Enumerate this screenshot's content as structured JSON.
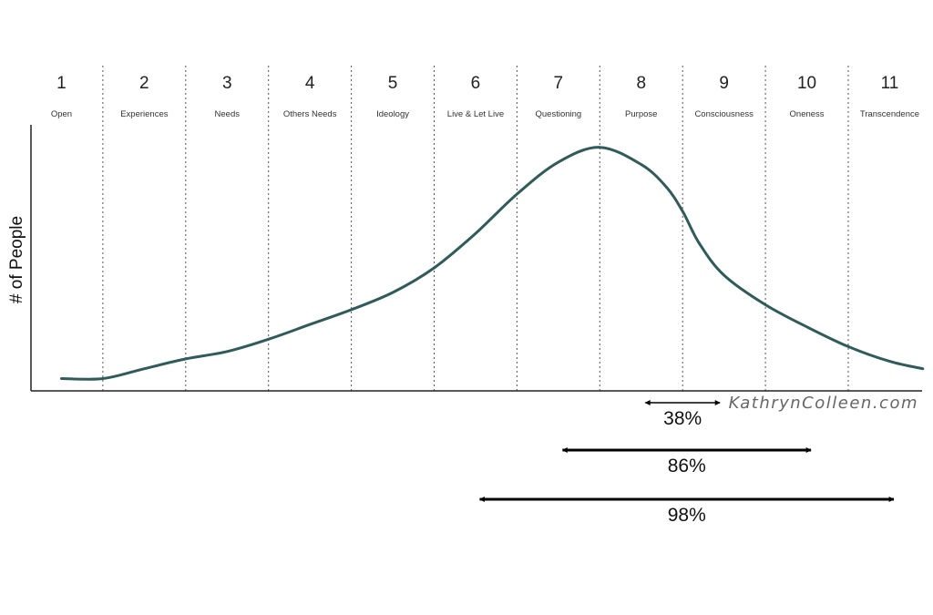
{
  "chart_data": {
    "type": "line",
    "ylabel": "# of People",
    "categories": [
      {
        "num": "1",
        "label": "Open"
      },
      {
        "num": "2",
        "label": "Experiences"
      },
      {
        "num": "3",
        "label": "Needs"
      },
      {
        "num": "4",
        "label": "Others Needs"
      },
      {
        "num": "5",
        "label": "Ideology"
      },
      {
        "num": "6",
        "label": "Live & Let Live"
      },
      {
        "num": "7",
        "label": "Questioning"
      },
      {
        "num": "8",
        "label": "Purpose"
      },
      {
        "num": "9",
        "label": "Consciousness"
      },
      {
        "num": "10",
        "label": "Oneness"
      },
      {
        "num": "11",
        "label": "Transcendence"
      }
    ],
    "x": [
      0.5,
      1.0,
      1.5,
      2.0,
      2.5,
      3.0,
      3.5,
      4.0,
      4.5,
      5.0,
      5.5,
      6.0,
      6.5,
      7.0,
      7.5,
      7.8,
      8.0,
      8.2,
      8.5,
      9.0,
      9.5,
      10.0,
      10.5,
      10.9
    ],
    "y": [
      0.05,
      0.05,
      0.09,
      0.13,
      0.16,
      0.21,
      0.27,
      0.33,
      0.4,
      0.5,
      0.64,
      0.8,
      0.93,
      0.99,
      0.92,
      0.83,
      0.73,
      0.6,
      0.47,
      0.35,
      0.26,
      0.18,
      0.12,
      0.09
    ],
    "ranges": [
      {
        "label": "38%",
        "from": 7.55,
        "to": 8.45
      },
      {
        "label": "86%",
        "from": 6.55,
        "to": 9.55
      },
      {
        "label": "98%",
        "from": 5.55,
        "to": 10.55
      }
    ],
    "line_color": "#2f5c5a",
    "grid": "dotted vertical separators"
  },
  "watermark": "KathrynColleen.com"
}
